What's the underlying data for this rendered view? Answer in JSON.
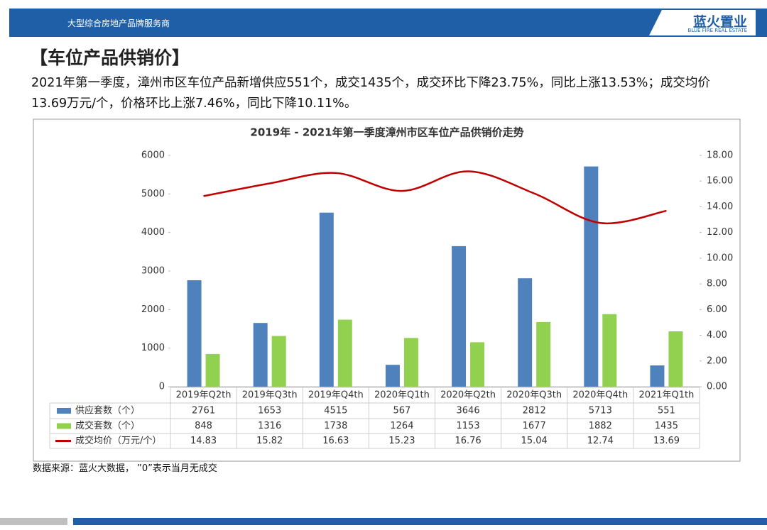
{
  "header": {
    "slogan": "大型综合房地产品牌服务商",
    "logo_cn": "蓝火置业",
    "logo_en": "BLUE FIRE REAL ESTATE"
  },
  "title": "【车位产品供销价】",
  "summary": "2021年第一季度，漳州市区车位产品新增供应551个，成交1435个，成交环比下降23.75%，同比上涨13.53%；成交均价13.69万元/个，价格环比上涨7.46%，同比下降10.11%。",
  "chart_data": {
    "type": "bar",
    "title": "2019年 - 2021年第一季度漳州市区车位产品供销价走势",
    "categories": [
      "2019年Q2th",
      "2019年Q3th",
      "2019年Q4th",
      "2020年Q1th",
      "2020年Q2th",
      "2020年Q3th",
      "2020年Q4th",
      "2021年Q1th"
    ],
    "series": [
      {
        "name": "供应套数（个）",
        "color": "#4f81bd",
        "values": [
          2761,
          1653,
          4515,
          567,
          3646,
          2812,
          5713,
          551
        ]
      },
      {
        "name": "成交套数（个）",
        "color": "#92d050",
        "values": [
          848,
          1316,
          1738,
          1264,
          1153,
          1677,
          1882,
          1435
        ]
      },
      {
        "name": "成交均价（万元/个）",
        "color": "#c00000",
        "type": "line",
        "axis": "y2",
        "values": [
          14.83,
          15.82,
          16.63,
          15.23,
          16.76,
          15.04,
          12.74,
          13.69
        ]
      }
    ],
    "ylim": [
      0,
      6000
    ],
    "yticks": [
      0,
      1000,
      2000,
      3000,
      4000,
      5000,
      6000
    ],
    "y2lim": [
      0,
      18
    ],
    "y2ticks": [
      {
        "value": 0,
        "label": "0.00"
      },
      {
        "value": 2,
        "label": "2.00"
      },
      {
        "value": 4,
        "label": "4.00"
      },
      {
        "value": 6,
        "label": "6.00"
      },
      {
        "value": 8,
        "label": "8.00"
      },
      {
        "value": 10,
        "label": "10.00"
      },
      {
        "value": 12,
        "label": "12.00"
      },
      {
        "value": 14,
        "label": "14.00"
      },
      {
        "value": 16,
        "label": "16.00"
      },
      {
        "value": 18,
        "label": "18.00"
      }
    ],
    "legend": "table"
  },
  "source": "数据来源：蓝火大数据，  ”0”表示当月无成交"
}
